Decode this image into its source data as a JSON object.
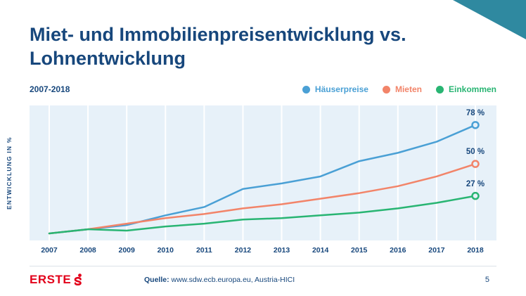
{
  "slide": {
    "title_line1": "Miet- und Immobilienpreisentwicklung vs.",
    "title_line2": "Lohnentwicklung",
    "period": "2007-2018",
    "y_axis_label": "ENTWICKLUNG IN %",
    "source_label": "Quelle:",
    "source_text": " www.sdw.ecb.europa.eu, Austria-HICI",
    "brand": "ERSTE",
    "page_number": "5"
  },
  "colors": {
    "navy": "#17477C",
    "chart_background": "#E7F1F9",
    "gridline": "#FFFFFF",
    "corner_teal": "#2F89A0",
    "brand_red": "#E2001A",
    "divider": "#DCE1E8"
  },
  "chart_data": {
    "type": "line",
    "title": "Miet- und Immobilienpreisentwicklung vs. Lohnentwicklung",
    "subtitle": "2007-2018",
    "xlabel": "",
    "ylabel": "ENTWICKLUNG IN %",
    "x": [
      "2007",
      "2008",
      "2009",
      "2010",
      "2011",
      "2012",
      "2013",
      "2014",
      "2015",
      "2016",
      "2017",
      "2018"
    ],
    "series": [
      {
        "name": "Häuserpreise",
        "color": "#4AA0D5",
        "end_label": "78 %",
        "values": [
          0,
          3,
          6,
          13,
          19,
          32,
          36,
          41,
          52,
          58,
          66,
          78
        ]
      },
      {
        "name": "Mieten",
        "color": "#F28469",
        "end_label": "50 %",
        "values": [
          0,
          3,
          7,
          11,
          14,
          18,
          21,
          25,
          29,
          34,
          41,
          50
        ]
      },
      {
        "name": "Einkommen",
        "color": "#29B573",
        "end_label": "27 %",
        "values": [
          0,
          3,
          2,
          5,
          7,
          10,
          11,
          13,
          15,
          18,
          22,
          27
        ]
      }
    ],
    "ylim": [
      0,
      85
    ],
    "grid": "vertical-white",
    "legend_position": "top-right"
  }
}
